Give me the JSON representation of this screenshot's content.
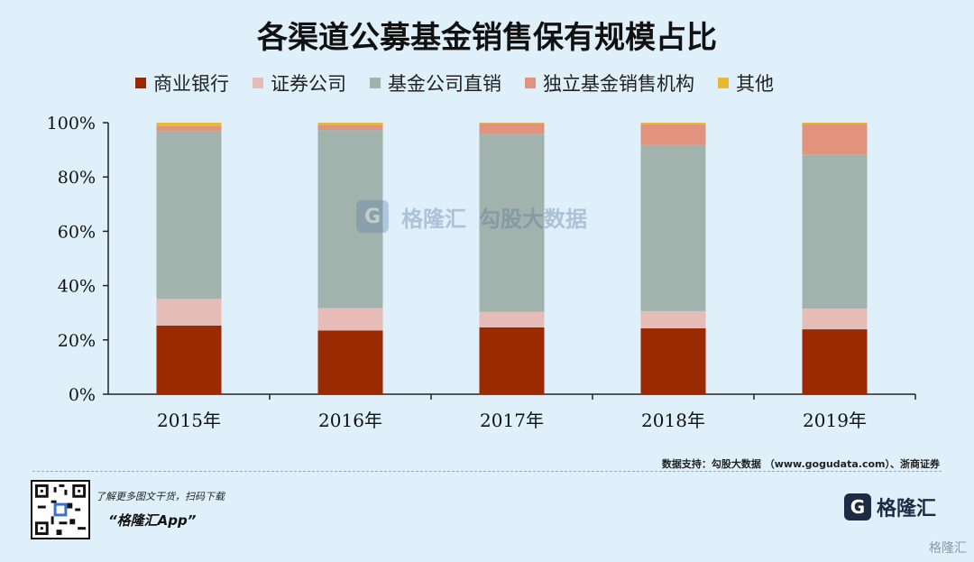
{
  "header": {
    "title": "各渠道公募基金销售保有规模占比"
  },
  "legend": [
    {
      "label": "商业银行",
      "color": "#9c2a00"
    },
    {
      "label": "证券公司",
      "color": "#e5bcb6"
    },
    {
      "label": "基金公司直销",
      "color": "#a2b3ae"
    },
    {
      "label": "独立基金销售机构",
      "color": "#e1937e"
    },
    {
      "label": "其他",
      "color": "#e8b931"
    }
  ],
  "chart_data": {
    "type": "bar",
    "stacked": true,
    "title": "各渠道公募基金销售保有规模占比",
    "categories": [
      "2015年",
      "2016年",
      "2017年",
      "2018年",
      "2019年"
    ],
    "y_tick_labels": [
      "0%",
      "20%",
      "40%",
      "60%",
      "80%",
      "100%"
    ],
    "ylim": [
      0,
      100
    ],
    "series": [
      {
        "name": "商业银行",
        "color": "#9c2a00",
        "values": [
          25.3,
          23.5,
          24.6,
          24.3,
          23.9
        ]
      },
      {
        "name": "证券公司",
        "color": "#e5bcb6",
        "values": [
          9.8,
          8.2,
          5.7,
          6.3,
          7.6
        ]
      },
      {
        "name": "基金公司直销",
        "color": "#a2b3ae",
        "values": [
          61.8,
          65.6,
          65.6,
          61.2,
          56.8
        ]
      },
      {
        "name": "独立基金销售机构",
        "color": "#e1937e",
        "values": [
          2.0,
          1.9,
          3.9,
          7.6,
          11.2
        ]
      },
      {
        "name": "其他",
        "color": "#e8b931",
        "values": [
          1.1,
          0.8,
          0.2,
          0.6,
          0.5
        ]
      }
    ]
  },
  "watermark": {
    "brand": "格隆汇",
    "partner": "勾股大数据"
  },
  "footer": {
    "source": "数据支持：勾股大数据 （www.gogudata.com）、浙商证券",
    "promo_line": "了解更多图文干货，扫码下载",
    "promo_app": "“格隆汇App”",
    "brand_name": "格隆汇",
    "brand_badge": "G",
    "corner_mark": "格隆汇"
  }
}
